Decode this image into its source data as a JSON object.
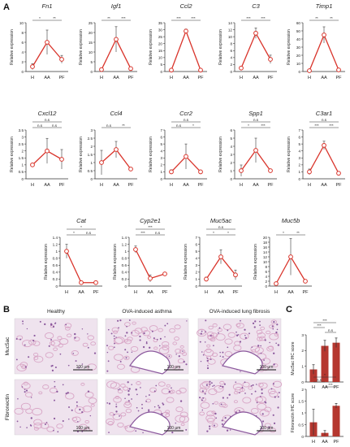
{
  "panels": {
    "A": "A",
    "B": "B",
    "C": "C"
  },
  "colors": {
    "line": "#d9342b",
    "error": "#555555",
    "bar": "#b5372f",
    "he_pink": "#d9a7c7",
    "he_purple": "#8c5a9e"
  },
  "chart_data": [
    {
      "type": "line",
      "title": "Fn1",
      "ylabel": "Relative expression",
      "categories": [
        "H",
        "AA",
        "PF"
      ],
      "values": [
        1.0,
        6.0,
        2.5
      ],
      "errors": [
        0.6,
        2.5,
        0.8
      ],
      "yticks": [
        0,
        2,
        4,
        6,
        8,
        10
      ],
      "ylim": [
        0,
        10
      ],
      "sig": [
        {
          "from": 0,
          "to": 1,
          "level": 0,
          "text": "*"
        },
        {
          "from": 1,
          "to": 2,
          "level": 0,
          "text": "**"
        }
      ]
    },
    {
      "type": "line",
      "title": "Igf1",
      "ylabel": "Relative expression",
      "categories": [
        "H",
        "AA",
        "PF"
      ],
      "values": [
        1.0,
        16.5,
        1.5
      ],
      "errors": [
        0.2,
        6.5,
        0.3
      ],
      "yticks": [
        0,
        5,
        10,
        15,
        20,
        25
      ],
      "ylim": [
        0,
        25
      ],
      "sig": [
        {
          "from": 0,
          "to": 1,
          "level": 0,
          "text": "**"
        },
        {
          "from": 1,
          "to": 2,
          "level": 0,
          "text": "***"
        }
      ]
    },
    {
      "type": "line",
      "title": "Ccl2",
      "ylabel": "Relative expression",
      "categories": [
        "H",
        "AA",
        "PF"
      ],
      "values": [
        1.0,
        29.0,
        1.0
      ],
      "errors": [
        0.2,
        1.5,
        0.2
      ],
      "yticks": [
        0,
        5,
        10,
        15,
        20,
        25,
        30,
        35
      ],
      "ylim": [
        0,
        35
      ],
      "sig": [
        {
          "from": 0,
          "to": 1,
          "level": 0,
          "text": "***"
        },
        {
          "from": 1,
          "to": 2,
          "level": 0,
          "text": "***"
        }
      ]
    },
    {
      "type": "line",
      "title": "C3",
      "ylabel": "Relative expression",
      "categories": [
        "H",
        "AA",
        "PF"
      ],
      "values": [
        1.0,
        11.0,
        3.5
      ],
      "errors": [
        0.4,
        1.5,
        1.2
      ],
      "yticks": [
        0,
        2,
        4,
        6,
        8,
        10,
        12,
        14
      ],
      "ylim": [
        0,
        14
      ],
      "sig": [
        {
          "from": 0,
          "to": 1,
          "level": 0,
          "text": "***"
        },
        {
          "from": 1,
          "to": 2,
          "level": 0,
          "text": "***"
        }
      ]
    },
    {
      "type": "line",
      "title": "Timp1",
      "ylabel": "Relative expression",
      "categories": [
        "H",
        "AA",
        "PF"
      ],
      "values": [
        1.0,
        45.0,
        2.0
      ],
      "errors": [
        0.3,
        10.0,
        0.5
      ],
      "yticks": [
        0,
        10,
        20,
        30,
        40,
        50,
        60
      ],
      "ylim": [
        0,
        60
      ],
      "sig": [
        {
          "from": 0,
          "to": 1,
          "level": 0,
          "text": "**"
        },
        {
          "from": 1,
          "to": 2,
          "level": 0,
          "text": "**"
        }
      ]
    },
    {
      "type": "line",
      "title": "Cxcl12",
      "ylabel": "Relative expression",
      "categories": [
        "H",
        "AA",
        "PF"
      ],
      "values": [
        1.0,
        2.0,
        1.4
      ],
      "errors": [
        0.1,
        0.9,
        0.7
      ],
      "yticks": [
        0,
        0.5,
        1.0,
        1.5,
        2.0,
        2.5,
        3.0,
        3.5
      ],
      "ylim": [
        0,
        3.5
      ],
      "sig": [
        {
          "from": 0,
          "to": 2,
          "level": 1,
          "text": "n.s"
        },
        {
          "from": 0,
          "to": 1,
          "level": 0,
          "text": "n.s"
        },
        {
          "from": 1,
          "to": 2,
          "level": 0,
          "text": "n.s"
        }
      ]
    },
    {
      "type": "line",
      "title": "Ccl4",
      "ylabel": "Relative expression",
      "categories": [
        "H",
        "AA",
        "PF"
      ],
      "values": [
        1.0,
        1.8,
        0.6
      ],
      "errors": [
        0.75,
        0.5,
        0.1
      ],
      "yticks": [
        0,
        0.5,
        1.0,
        1.5,
        2.0,
        2.5,
        3.0
      ],
      "ylim": [
        0,
        3.0
      ],
      "sig": [
        {
          "from": 0,
          "to": 1,
          "level": 0,
          "text": "n.s"
        },
        {
          "from": 1,
          "to": 2,
          "level": 0,
          "text": "**"
        }
      ]
    },
    {
      "type": "line",
      "title": "Ccr2",
      "ylabel": "Relative expression",
      "categories": [
        "H",
        "AA",
        "PF"
      ],
      "values": [
        1.0,
        3.2,
        1.0
      ],
      "errors": [
        0.3,
        1.8,
        0.2
      ],
      "yticks": [
        0,
        1,
        2,
        3,
        4,
        5,
        6,
        7
      ],
      "ylim": [
        0,
        7
      ],
      "sig": [
        {
          "from": 0,
          "to": 2,
          "level": 1,
          "text": "n.s"
        },
        {
          "from": 0,
          "to": 1,
          "level": 0,
          "text": "n.s"
        },
        {
          "from": 1,
          "to": 2,
          "level": 0,
          "text": "*"
        }
      ]
    },
    {
      "type": "line",
      "title": "Spp1",
      "ylabel": "Relative expression",
      "categories": [
        "H",
        "AA",
        "PF"
      ],
      "values": [
        1.0,
        3.5,
        1.0
      ],
      "errors": [
        0.7,
        1.5,
        0.2
      ],
      "yticks": [
        0,
        1,
        2,
        3,
        4,
        5,
        6
      ],
      "ylim": [
        0,
        6
      ],
      "sig": [
        {
          "from": 0,
          "to": 2,
          "level": 1,
          "text": "n.s"
        },
        {
          "from": 0,
          "to": 1,
          "level": 0,
          "text": "*"
        },
        {
          "from": 1,
          "to": 2,
          "level": 0,
          "text": "***"
        }
      ]
    },
    {
      "type": "line",
      "title": "C3ar1",
      "ylabel": "Relative expression",
      "categories": [
        "H",
        "AA",
        "PF"
      ],
      "values": [
        1.0,
        4.8,
        0.8
      ],
      "errors": [
        0.4,
        0.6,
        0.2
      ],
      "yticks": [
        0,
        1,
        2,
        3,
        4,
        5,
        6,
        7
      ],
      "ylim": [
        0,
        7
      ],
      "sig": [
        {
          "from": 0,
          "to": 2,
          "level": 1,
          "text": "n.s"
        },
        {
          "from": 0,
          "to": 1,
          "level": 0,
          "text": "***"
        },
        {
          "from": 1,
          "to": 2,
          "level": 0,
          "text": "***"
        }
      ]
    },
    {
      "type": "line",
      "title": "Cat",
      "ylabel": "Relative expression",
      "categories": [
        "H",
        "AA",
        "PF"
      ],
      "values": [
        1.0,
        0.1,
        0.1
      ],
      "errors": [
        0.2,
        0.02,
        0.03
      ],
      "yticks": [
        0,
        0.2,
        0.4,
        0.6,
        0.8,
        1.0,
        1.2,
        1.4
      ],
      "ylim": [
        0,
        1.4
      ],
      "sig": [
        {
          "from": 0,
          "to": 2,
          "level": 1,
          "text": "*"
        },
        {
          "from": 0,
          "to": 1,
          "level": 0,
          "text": "*"
        },
        {
          "from": 1,
          "to": 2,
          "level": 0,
          "text": "n.s"
        }
      ]
    },
    {
      "type": "line",
      "title": "Cyp2e1",
      "ylabel": "Relative expression",
      "categories": [
        "H",
        "AA",
        "PF"
      ],
      "values": [
        1.05,
        0.22,
        0.35
      ],
      "errors": [
        0.1,
        0.1,
        0.03
      ],
      "yticks": [
        0,
        0.2,
        0.4,
        0.6,
        0.8,
        1.0,
        1.2,
        1.4
      ],
      "ylim": [
        0,
        1.4
      ],
      "sig": [
        {
          "from": 0,
          "to": 2,
          "level": 1,
          "text": "***"
        },
        {
          "from": 0,
          "to": 1,
          "level": 0,
          "text": "***"
        },
        {
          "from": 1,
          "to": 2,
          "level": 0,
          "text": "n.s"
        }
      ]
    },
    {
      "type": "line",
      "title": "Muc5ac",
      "ylabel": "Relative expression",
      "categories": [
        "H",
        "AA",
        "PF"
      ],
      "values": [
        1.0,
        4.2,
        1.6
      ],
      "errors": [
        0.3,
        1.0,
        0.7
      ],
      "yticks": [
        0,
        1,
        2,
        3,
        4,
        5,
        6,
        7
      ],
      "ylim": [
        0,
        7
      ],
      "sig": [
        {
          "from": 0,
          "to": 2,
          "level": 1,
          "text": "n.s"
        },
        {
          "from": 0,
          "to": 1,
          "level": 0,
          "text": "*"
        },
        {
          "from": 1,
          "to": 2,
          "level": 0,
          "text": "*"
        }
      ]
    },
    {
      "type": "line",
      "title": "Muc5b",
      "ylabel": "Relative expression",
      "categories": [
        "H",
        "AA",
        "PF"
      ],
      "values": [
        1.0,
        12.0,
        2.0
      ],
      "errors": [
        0.2,
        7.5,
        0.3
      ],
      "yticks": [
        0,
        2,
        4,
        6,
        8,
        10,
        12,
        14,
        16,
        18,
        20
      ],
      "ylim": [
        0,
        20
      ],
      "sig": [
        {
          "from": 0,
          "to": 1,
          "level": 0,
          "text": "*"
        },
        {
          "from": 1,
          "to": 2,
          "level": 0,
          "text": "**"
        }
      ]
    },
    {
      "type": "bar",
      "ylabel": "Muc5ac IHC score",
      "categories": [
        "H",
        "AA",
        "PF"
      ],
      "values": [
        0.8,
        2.3,
        2.5
      ],
      "errors": [
        0.3,
        0.35,
        0.3
      ],
      "yticks": [
        0,
        1,
        2,
        3
      ],
      "ylim": [
        0,
        3
      ],
      "sig": [
        {
          "from": 0,
          "to": 2,
          "level": 2,
          "text": "***"
        },
        {
          "from": 0,
          "to": 1,
          "level": 1,
          "text": "***"
        },
        {
          "from": 1,
          "to": 2,
          "level": 0,
          "text": "n.s"
        }
      ]
    },
    {
      "type": "bar",
      "ylabel": "Fibronectin IHC score",
      "categories": [
        "H",
        "AA",
        "PF"
      ],
      "values": [
        0.6,
        0.15,
        1.3
      ],
      "errors": [
        0.55,
        0.1,
        0.1
      ],
      "yticks": [
        0,
        0.5,
        1,
        1.5,
        2
      ],
      "ylim": [
        0,
        2
      ],
      "sig": [
        {
          "from": 0,
          "to": 2,
          "level": 2,
          "text": "*"
        },
        {
          "from": 0,
          "to": 1,
          "level": 1,
          "text": "n.s"
        },
        {
          "from": 1,
          "to": 2,
          "level": 0,
          "text": "***"
        }
      ]
    }
  ],
  "micrographs": {
    "columns": [
      "Healthy",
      "OVA-induced asthma",
      "OVA-induced lung fibrosis"
    ],
    "rows": [
      "Muc5ac",
      "Fibronectin"
    ],
    "scale_bar": "100 μm"
  }
}
